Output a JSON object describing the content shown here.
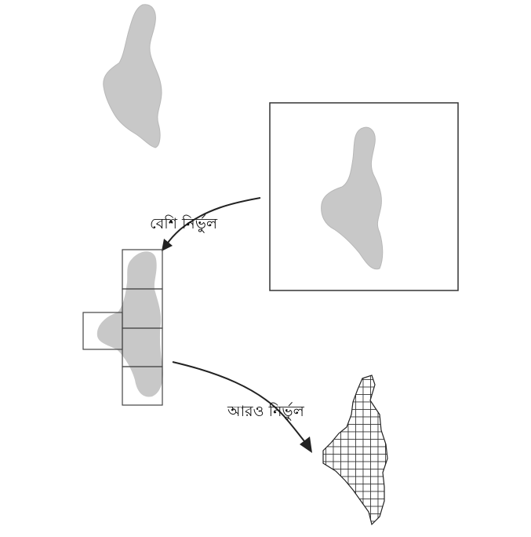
{
  "labels": {
    "more_accurate": "বেশি নির্ভুল",
    "even_more_accurate": "আরও নির্ভুল"
  },
  "colors": {
    "blob_fill": "#c8c8c8",
    "line": "#333333",
    "background": "#ffffff"
  },
  "figure": {
    "stages": [
      "original-shape",
      "single-square-estimate",
      "coarse-square-grid",
      "fine-square-grid"
    ]
  }
}
